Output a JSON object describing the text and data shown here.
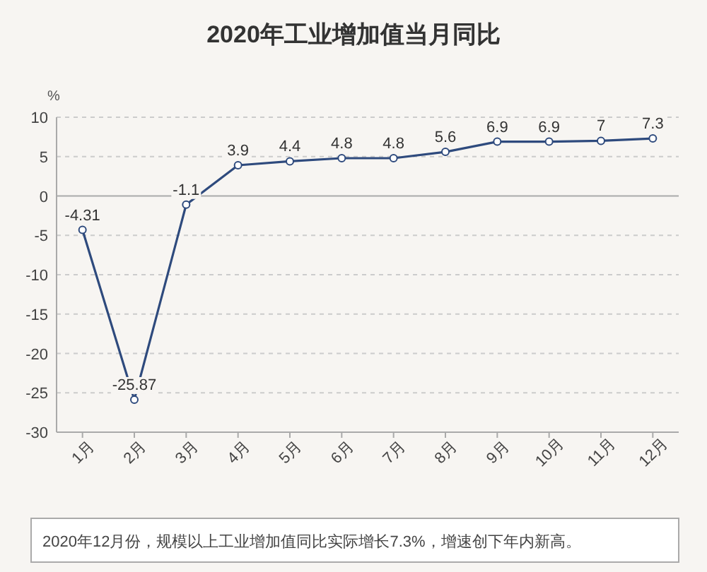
{
  "chart_data": {
    "type": "line",
    "title": "2020年工业增加值当月同比",
    "ylabel": "%",
    "categories": [
      "1月",
      "2月",
      "3月",
      "4月",
      "5月",
      "6月",
      "7月",
      "8月",
      "9月",
      "10月",
      "11月",
      "12月"
    ],
    "series": [
      {
        "color": "#2e4a7d",
        "values": [
          -4.31,
          -25.87,
          -1.1,
          3.9,
          4.4,
          4.8,
          4.8,
          5.6,
          6.9,
          6.9,
          7,
          7.3
        ]
      }
    ],
    "ylim": [
      -30,
      10
    ],
    "yticks": [
      -30,
      -25,
      -20,
      -15,
      -10,
      -5,
      0,
      5,
      10
    ],
    "grid": "y",
    "marker": "circle",
    "data_labels": true,
    "annotations": [
      "2020年12月份，规模以上工业增加值同比实际增长7.3%，增速创下年内新高。"
    ]
  }
}
